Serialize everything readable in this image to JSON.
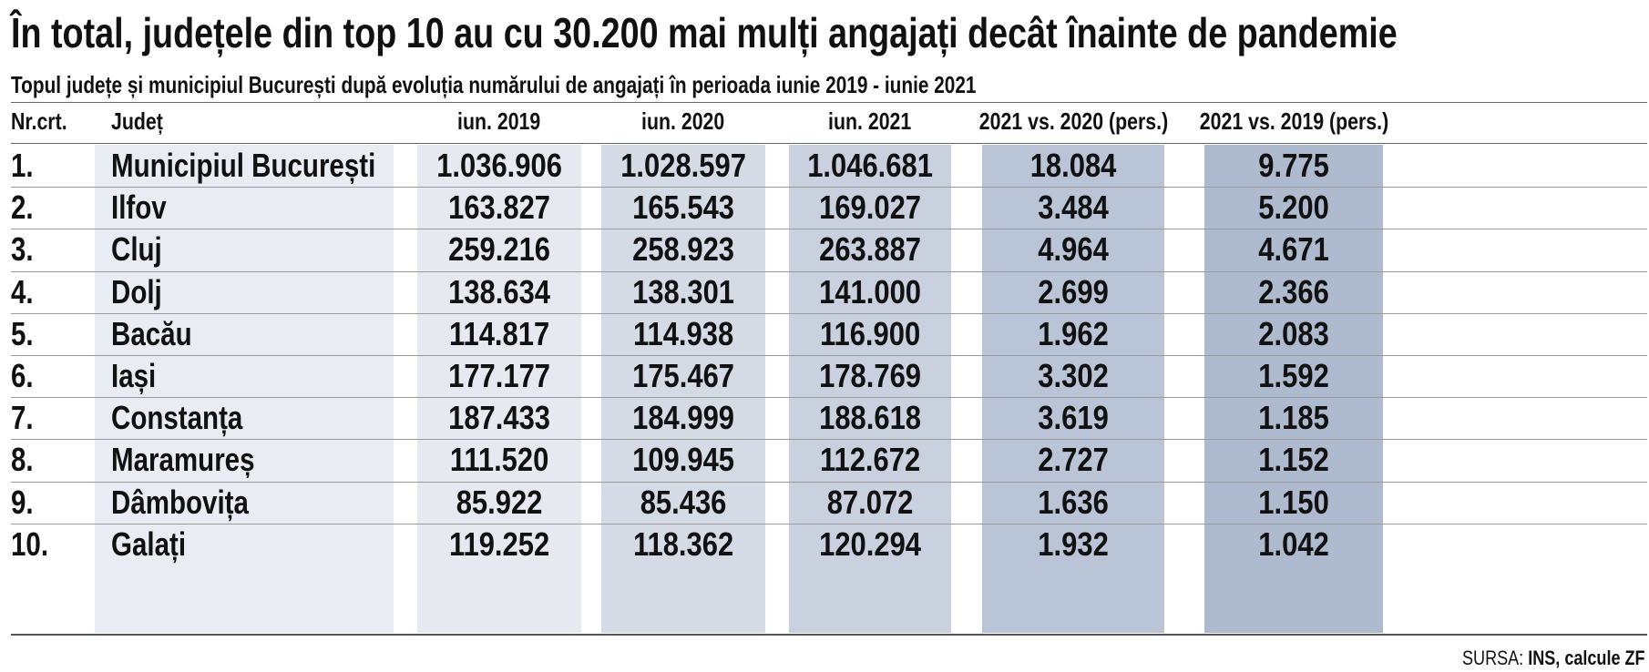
{
  "title": "În total, județele din top 10 au cu 30.200 mai mulți angajați decât înainte de pandemie",
  "subtitle": "Topul județe și municipiul București după evoluția numărului de angajați în perioada iunie 2019 - iunie 2021",
  "headers": [
    "Nr.crt.",
    "Județ",
    "iun. 2019",
    "iun. 2020",
    "iun. 2021",
    "2021 vs. 2020 (pers.)",
    "2021 vs. 2019 (pers.)"
  ],
  "rows": [
    [
      "1.",
      "Municipiul București",
      "1.036.906",
      "1.028.597",
      "1.046.681",
      "18.084",
      "9.775"
    ],
    [
      "2.",
      "Ilfov",
      "163.827",
      "165.543",
      "169.027",
      "3.484",
      "5.200"
    ],
    [
      "3.",
      "Cluj",
      "259.216",
      "258.923",
      "263.887",
      "4.964",
      "4.671"
    ],
    [
      "4.",
      "Dolj",
      "138.634",
      "138.301",
      "141.000",
      "2.699",
      "2.366"
    ],
    [
      "5.",
      "Bacău",
      "114.817",
      "114.938",
      "116.900",
      "1.962",
      "2.083"
    ],
    [
      "6.",
      "Iași",
      "177.177",
      "175.467",
      "178.769",
      "3.302",
      "1.592"
    ],
    [
      "7.",
      "Constanța",
      "187.433",
      "184.999",
      "188.618",
      "3.619",
      "1.185"
    ],
    [
      "8.",
      "Maramureș",
      "111.520",
      "109.945",
      "112.672",
      "2.727",
      "1.152"
    ],
    [
      "9.",
      "Dâmbovița",
      "85.922",
      "85.436",
      "87.072",
      "1.636",
      "1.150"
    ],
    [
      "10.",
      "Galați",
      "119.252",
      "118.362",
      "120.294",
      "1.932",
      "1.042"
    ]
  ],
  "source": {
    "label": "SURSA:",
    "value": "INS, calcule ZF"
  },
  "colors": {
    "col_name": "#e9edf3",
    "col_2019": "#e6eaf0",
    "col_2020": "#d4dbe5",
    "col_2021": "#c9d1de",
    "col_diff20": "#b9c5d6",
    "col_diff19": "#aebbce"
  }
}
